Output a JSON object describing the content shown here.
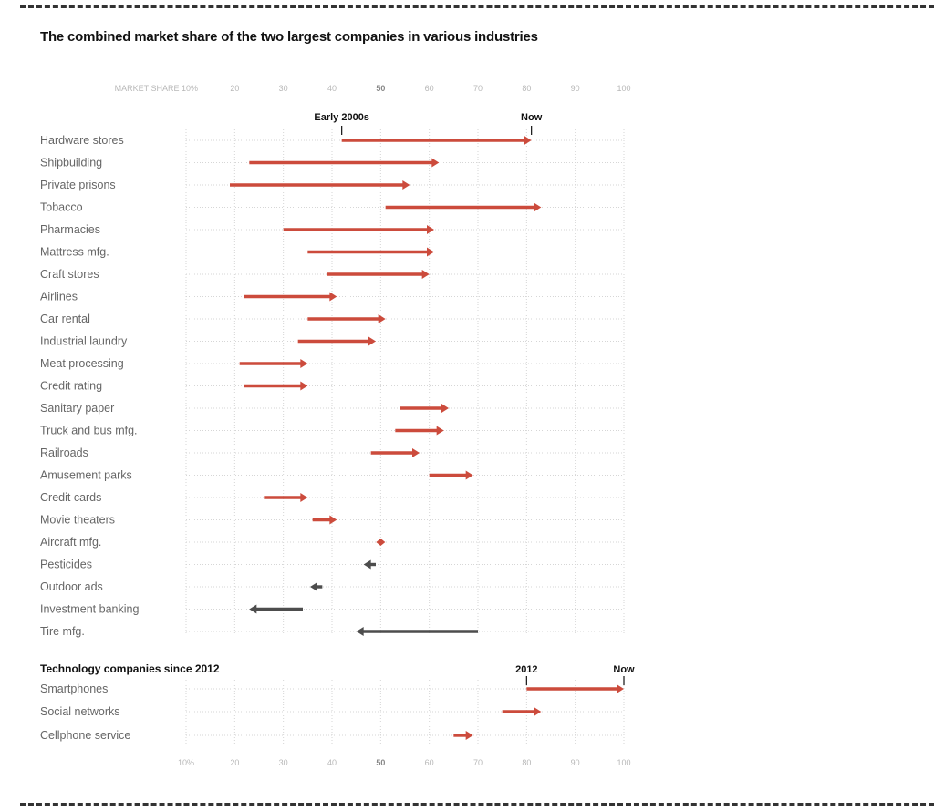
{
  "title": "The combined market share of the two largest companies in various industries",
  "chart_data": {
    "type": "arrow",
    "xlabel": "MARKET SHARE",
    "xlim": [
      10,
      100
    ],
    "ticks": [
      10,
      20,
      30,
      40,
      50,
      60,
      70,
      80,
      90,
      100
    ],
    "top_tick_labels": [
      "MARKET SHARE 10%",
      "20",
      "30",
      "40",
      "50",
      "60",
      "70",
      "80",
      "90",
      "100"
    ],
    "bottom_tick_labels": [
      "10%",
      "20",
      "30",
      "40",
      "50",
      "60",
      "70",
      "80",
      "90",
      "100"
    ],
    "colors": {
      "increase": "#cc4b3c",
      "decrease": "#4d4d4d",
      "grid": "#d6d6d6",
      "text": "#666666"
    },
    "panels": [
      {
        "name": "industries",
        "start_label": "Early 2000s",
        "end_label": "Now",
        "start_marker_x": 42,
        "end_marker_x": 81,
        "rows": [
          {
            "label": "Hardware stores",
            "start": 42,
            "end": 81
          },
          {
            "label": "Shipbuilding",
            "start": 23,
            "end": 62
          },
          {
            "label": "Private prisons",
            "start": 19,
            "end": 56
          },
          {
            "label": "Tobacco",
            "start": 51,
            "end": 83
          },
          {
            "label": "Pharmacies",
            "start": 30,
            "end": 61
          },
          {
            "label": "Mattress mfg.",
            "start": 35,
            "end": 61
          },
          {
            "label": "Craft stores",
            "start": 39,
            "end": 60
          },
          {
            "label": "Airlines",
            "start": 22,
            "end": 41
          },
          {
            "label": "Car rental",
            "start": 35,
            "end": 51
          },
          {
            "label": "Industrial laundry",
            "start": 33,
            "end": 49
          },
          {
            "label": "Meat processing",
            "start": 21,
            "end": 35
          },
          {
            "label": "Credit rating",
            "start": 22,
            "end": 35
          },
          {
            "label": "Sanitary paper",
            "start": 54,
            "end": 64
          },
          {
            "label": "Truck and bus mfg.",
            "start": 53,
            "end": 63
          },
          {
            "label": "Railroads",
            "start": 48,
            "end": 58
          },
          {
            "label": "Amusement parks",
            "start": 60,
            "end": 69
          },
          {
            "label": "Credit cards",
            "start": 26,
            "end": 35
          },
          {
            "label": "Movie theaters",
            "start": 36,
            "end": 41
          },
          {
            "label": "Aircraft mfg.",
            "start": 50,
            "end": 50
          },
          {
            "label": "Pesticides",
            "start": 49,
            "end": 46.5
          },
          {
            "label": "Outdoor ads",
            "start": 38,
            "end": 35.5
          },
          {
            "label": "Investment banking",
            "start": 34,
            "end": 23
          },
          {
            "label": "Tire mfg.",
            "start": 70,
            "end": 45
          }
        ]
      },
      {
        "name": "technology",
        "section_title": "Technology companies since 2012",
        "start_label": "2012",
        "end_label": "Now",
        "start_marker_x": 80,
        "end_marker_x": 100,
        "rows": [
          {
            "label": "Smartphones",
            "start": 80,
            "end": 100
          },
          {
            "label": "Social networks",
            "start": 75,
            "end": 83
          },
          {
            "label": "Cellphone service",
            "start": 65,
            "end": 69
          }
        ]
      }
    ]
  }
}
